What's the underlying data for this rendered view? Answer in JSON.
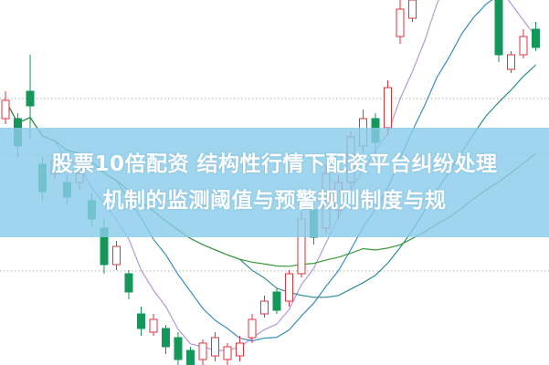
{
  "headline": {
    "line1": "股票10倍配资 结构性行情下配资平台纠纷处理",
    "line2": "机制的监测阈值与预警规则制度与规"
  },
  "colors": {
    "up": "#e0333b",
    "down": "#14975a",
    "banner": "#8accea",
    "text": "#ffffff",
    "ma": [
      "#b69ad8",
      "#3a8fc4",
      "#2d8f8f",
      "#3c9a3c"
    ],
    "grid": "#b0b0b0"
  },
  "chart_data": {
    "type": "candlestick",
    "title": "",
    "xlabel": "",
    "ylabel": "",
    "axes_visible": false,
    "grid": "dotted horizontal",
    "moving_averages": [
      5,
      10,
      20,
      30
    ],
    "candles": [
      [
        67.5,
        72.5,
        75,
        66
      ],
      [
        67.5,
        60,
        69,
        57
      ],
      [
        75,
        71,
        85,
        62
      ],
      [
        55,
        47.5,
        57,
        45
      ],
      [
        52.5,
        56,
        58,
        51
      ],
      [
        50,
        46,
        52,
        44
      ],
      [
        50,
        52.5,
        54,
        48
      ],
      [
        45,
        40,
        47,
        38
      ],
      [
        37.5,
        27.5,
        40,
        25
      ],
      [
        27.5,
        32.5,
        34,
        26
      ],
      [
        25,
        20,
        26,
        18
      ],
      [
        14,
        10,
        16,
        8
      ],
      [
        9,
        12.5,
        14,
        8
      ],
      [
        10,
        5,
        11,
        3
      ],
      [
        7.5,
        1.5,
        9,
        0
      ],
      [
        4,
        0,
        5,
        -2
      ],
      [
        1.5,
        6,
        7,
        0
      ],
      [
        2.5,
        7.5,
        9,
        1
      ],
      [
        1.5,
        5,
        6,
        0
      ],
      [
        2.5,
        6,
        8,
        1
      ],
      [
        7.5,
        12.5,
        14,
        6
      ],
      [
        14,
        17.5,
        19,
        13
      ],
      [
        20,
        15,
        21,
        14
      ],
      [
        17.5,
        25,
        26,
        16
      ],
      [
        25,
        40,
        42,
        24
      ],
      [
        42.5,
        35,
        44,
        33
      ],
      [
        37.5,
        52.5,
        55,
        36
      ],
      [
        42.5,
        50,
        52,
        40
      ],
      [
        50,
        62.5,
        64,
        48
      ],
      [
        60,
        67.5,
        70,
        58
      ],
      [
        67.5,
        61,
        69,
        58
      ],
      [
        65,
        76,
        78,
        63
      ],
      [
        90,
        97.5,
        102,
        88
      ],
      [
        95,
        100,
        104,
        94
      ],
      [
        105,
        110,
        112,
        103
      ],
      [
        108,
        112,
        115,
        106
      ],
      [
        112,
        108,
        114,
        105
      ],
      [
        108,
        113,
        116,
        106
      ],
      [
        113,
        109,
        115,
        104
      ],
      [
        106,
        103,
        108,
        100
      ],
      [
        100,
        85,
        104,
        83
      ],
      [
        81,
        85,
        86,
        80
      ],
      [
        85,
        90,
        92,
        84
      ],
      [
        92,
        87,
        94,
        86
      ]
    ]
  }
}
